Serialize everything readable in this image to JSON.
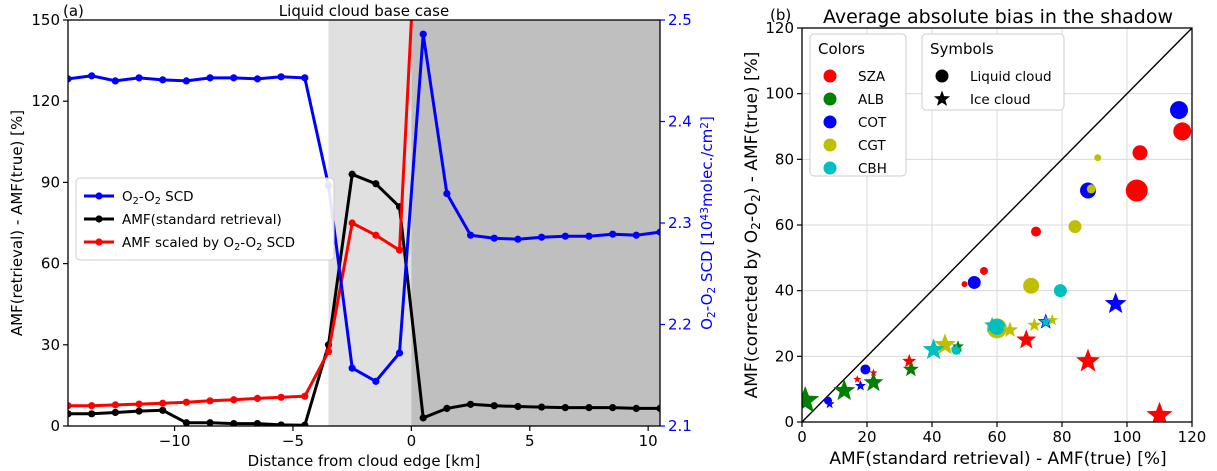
{
  "chart_data": [
    {
      "type": "line",
      "panel_label": "(a)",
      "title": "Liquid cloud base case",
      "xlabel": "Distance from cloud edge [km]",
      "ylabel": "AMF(retrieval) - AMF(true) [%]",
      "y2label_parts": [
        "O",
        "2",
        "-O",
        "2",
        " SCD [10",
        "43",
        "molec./cm",
        "2",
        "]"
      ],
      "xlim": [
        -14.5,
        10.5
      ],
      "ylim": [
        0,
        150
      ],
      "y2lim": [
        2.1,
        2.5
      ],
      "xticks": [
        -10,
        -5,
        0,
        5,
        10
      ],
      "yticks": [
        0,
        30,
        60,
        90,
        120,
        150
      ],
      "y2ticks": [
        2.1,
        2.2,
        2.3,
        2.4,
        2.5
      ],
      "shading": [
        {
          "x": [
            -3.5,
            0
          ],
          "color": "#e0e0e0"
        },
        {
          "x": [
            0,
            10.5
          ],
          "color": "#bfbfbf"
        }
      ],
      "series": [
        {
          "name_parts": [
            "O",
            "2",
            "-O",
            "2",
            " SCD"
          ],
          "axis": "right",
          "color": "#0000ff",
          "x": [
            -14.5,
            -13.5,
            -12.5,
            -11.5,
            -10.5,
            -9.5,
            -8.5,
            -7.5,
            -6.5,
            -5.5,
            -4.5,
            -3.5,
            -2.5,
            -1.5,
            -0.5,
            0.5,
            1.5,
            2.5,
            3.5,
            4.5,
            5.5,
            6.5,
            7.5,
            8.5,
            9.5,
            10.5
          ],
          "values": [
            2.442,
            2.445,
            2.44,
            2.443,
            2.441,
            2.44,
            2.443,
            2.443,
            2.442,
            2.444,
            2.443,
            2.337,
            2.157,
            2.144,
            2.172,
            2.486,
            2.329,
            2.288,
            2.285,
            2.284,
            2.286,
            2.287,
            2.287,
            2.289,
            2.288,
            2.291
          ]
        },
        {
          "name": "AMF(standard retrieval)",
          "axis": "left",
          "color": "#000000",
          "x": [
            -14.5,
            -13.5,
            -12.5,
            -11.5,
            -10.5,
            -9.5,
            -8.5,
            -7.5,
            -6.5,
            -5.5,
            -4.5,
            -3.5,
            -2.5,
            -1.5,
            -0.5,
            0.5,
            1.5,
            2.5,
            3.5,
            4.5,
            5.5,
            6.5,
            7.5,
            8.5,
            9.5,
            10.5
          ],
          "values": [
            4.5,
            4.5,
            5,
            5.5,
            5.8,
            1.2,
            1.2,
            0.9,
            0.9,
            0.4,
            0.3,
            30,
            93,
            89.5,
            81,
            3,
            6.5,
            8,
            7.5,
            7.2,
            7,
            6.8,
            6.8,
            6.8,
            6.5,
            6.5
          ]
        },
        {
          "name_parts": [
            "AMF scaled by O",
            "2",
            "-O",
            "2",
            " SCD"
          ],
          "axis": "left",
          "color": "#ff0000",
          "x": [
            -14.5,
            -13.5,
            -12.5,
            -11.5,
            -10.5,
            -9.5,
            -8.5,
            -7.5,
            -6.5,
            -5.5,
            -4.5,
            -3.5,
            -2.5,
            -1.5,
            -0.5,
            0
          ],
          "values": [
            7.5,
            7.5,
            7.8,
            8.1,
            8.4,
            8.8,
            9.3,
            9.7,
            10.2,
            10.6,
            11,
            27.5,
            75,
            70.5,
            65,
            150
          ]
        }
      ]
    },
    {
      "type": "scatter",
      "panel_label": "(b)",
      "title": "Average absolute bias in the shadow",
      "xlabel": "AMF(standard retrieval) - AMF(true) [%]",
      "ylabel_parts": [
        "AMF(corrected by O",
        "2",
        "-O",
        "2",
        ") - AMF(true) [%]"
      ],
      "xlim": [
        0,
        120
      ],
      "ylim": [
        0,
        120
      ],
      "xticks": [
        0,
        20,
        40,
        60,
        80,
        100,
        120
      ],
      "yticks": [
        0,
        20,
        40,
        60,
        80,
        100,
        120
      ],
      "grid": true,
      "reference_line": "1:1",
      "legend_colors": {
        "title": "Colors",
        "items": [
          {
            "label": "SZA",
            "color": "#ff0000"
          },
          {
            "label": "ALB",
            "color": "#008000"
          },
          {
            "label": "COT",
            "color": "#0000ff"
          },
          {
            "label": "CGT",
            "color": "#bfbf00"
          },
          {
            "label": "CBH",
            "color": "#00bfbf"
          }
        ]
      },
      "legend_symbols": {
        "title": "Symbols",
        "items": [
          {
            "label": "Liquid cloud",
            "marker": "circle"
          },
          {
            "label": "Ice cloud",
            "marker": "star"
          }
        ]
      },
      "points": [
        {
          "x": 50,
          "y": 42,
          "m": "circle",
          "c": "SZA",
          "s": 3
        },
        {
          "x": 56,
          "y": 46,
          "m": "circle",
          "c": "SZA",
          "s": 4
        },
        {
          "x": 72,
          "y": 58,
          "m": "circle",
          "c": "SZA",
          "s": 5
        },
        {
          "x": 103,
          "y": 70.5,
          "m": "circle",
          "c": "SZA",
          "s": 11
        },
        {
          "x": 104,
          "y": 82,
          "m": "circle",
          "c": "SZA",
          "s": 7.5
        },
        {
          "x": 117,
          "y": 88.5,
          "m": "circle",
          "c": "SZA",
          "s": 9
        },
        {
          "x": 8,
          "y": 6.5,
          "m": "circle",
          "c": "COT",
          "s": 4
        },
        {
          "x": 19.5,
          "y": 16,
          "m": "circle",
          "c": "COT",
          "s": 5
        },
        {
          "x": 53,
          "y": 42.5,
          "m": "circle",
          "c": "COT",
          "s": 6.5
        },
        {
          "x": 88,
          "y": 70.5,
          "m": "circle",
          "c": "COT",
          "s": 8
        },
        {
          "x": 116,
          "y": 95,
          "m": "circle",
          "c": "COT",
          "s": 9
        },
        {
          "x": 89,
          "y": 71,
          "m": "circle",
          "c": "CGT",
          "s": 4.5
        },
        {
          "x": 91,
          "y": 80.5,
          "m": "circle",
          "c": "CGT",
          "s": 3.5
        },
        {
          "x": 84,
          "y": 59.5,
          "m": "circle",
          "c": "CGT",
          "s": 6.5
        },
        {
          "x": 70.5,
          "y": 41.5,
          "m": "circle",
          "c": "CGT",
          "s": 8
        },
        {
          "x": 60,
          "y": 28.5,
          "m": "circle",
          "c": "CGT",
          "s": 10
        },
        {
          "x": 47.5,
          "y": 22,
          "m": "circle",
          "c": "CBH",
          "s": 5
        },
        {
          "x": 60,
          "y": 29,
          "m": "circle",
          "c": "CBH",
          "s": 8
        },
        {
          "x": 79.5,
          "y": 40,
          "m": "circle",
          "c": "CBH",
          "s": 6.5
        },
        {
          "x": 33,
          "y": 18.5,
          "m": "star",
          "c": "SZA",
          "s": 7
        },
        {
          "x": 69,
          "y": 25,
          "m": "star",
          "c": "SZA",
          "s": 10
        },
        {
          "x": 88,
          "y": 18.5,
          "m": "star",
          "c": "SZA",
          "s": 12
        },
        {
          "x": 110,
          "y": 2,
          "m": "star",
          "c": "SZA",
          "s": 13
        },
        {
          "x": 17,
          "y": 13,
          "m": "star",
          "c": "SZA",
          "s": 4
        },
        {
          "x": 22,
          "y": 15,
          "m": "star",
          "c": "SZA",
          "s": 4
        },
        {
          "x": 1,
          "y": 6.5,
          "m": "star",
          "c": "ALB",
          "s": 14
        },
        {
          "x": 13,
          "y": 9.5,
          "m": "star",
          "c": "ALB",
          "s": 11
        },
        {
          "x": 22,
          "y": 12,
          "m": "star",
          "c": "ALB",
          "s": 10
        },
        {
          "x": 33.5,
          "y": 16,
          "m": "star",
          "c": "ALB",
          "s": 8
        },
        {
          "x": 48,
          "y": 23,
          "m": "star",
          "c": "ALB",
          "s": 6
        },
        {
          "x": 8.5,
          "y": 5.5,
          "m": "star",
          "c": "COT",
          "s": 5
        },
        {
          "x": 18,
          "y": 11,
          "m": "star",
          "c": "COT",
          "s": 5.5
        },
        {
          "x": 75,
          "y": 30.5,
          "m": "star",
          "c": "COT",
          "s": 8
        },
        {
          "x": 96.5,
          "y": 36,
          "m": "star",
          "c": "COT",
          "s": 11
        },
        {
          "x": 44,
          "y": 23.5,
          "m": "star",
          "c": "CGT",
          "s": 11
        },
        {
          "x": 64,
          "y": 28,
          "m": "star",
          "c": "CGT",
          "s": 8
        },
        {
          "x": 71.5,
          "y": 29.5,
          "m": "star",
          "c": "CGT",
          "s": 7
        },
        {
          "x": 77,
          "y": 31,
          "m": "star",
          "c": "CGT",
          "s": 6
        },
        {
          "x": 40.5,
          "y": 22,
          "m": "star",
          "c": "CBH",
          "s": 11
        },
        {
          "x": 58.5,
          "y": 29.5,
          "m": "star",
          "c": "CBH",
          "s": 8
        },
        {
          "x": 47.5,
          "y": 22,
          "m": "star",
          "c": "CBH",
          "s": 6
        },
        {
          "x": 75,
          "y": 30.5,
          "m": "star",
          "c": "CBH",
          "s": 6
        }
      ]
    }
  ]
}
